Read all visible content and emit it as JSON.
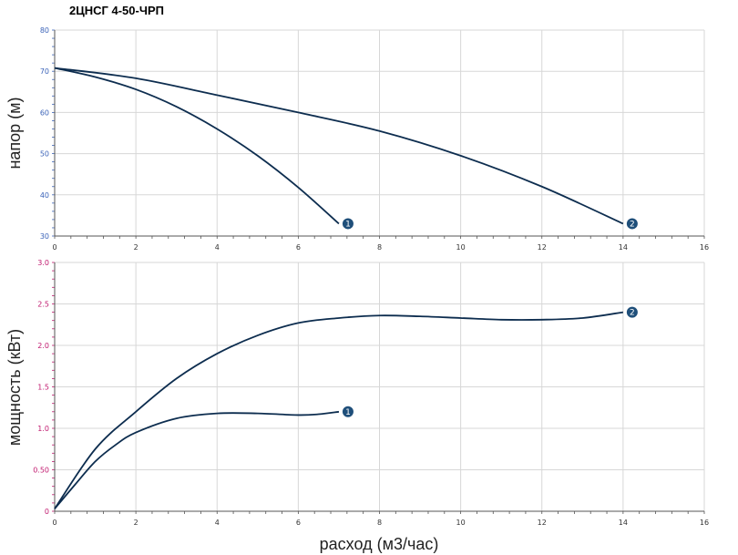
{
  "title": "2ЦНСГ 4-50-ЧРП",
  "colors": {
    "curve": "#0d2d4f",
    "marker": "#1f4f7a",
    "grid": "#d7d7d7",
    "axis": "#555555",
    "head_ticks": "#3b63b8",
    "power_ticks": "#c0186e",
    "x_ticks": "#333333"
  },
  "chart_data": [
    {
      "type": "line",
      "title": "",
      "xlabel": "",
      "ylabel": "напор (м)",
      "xlim": [
        0,
        16
      ],
      "ylim": [
        30,
        80
      ],
      "x_ticks": [
        0,
        2,
        4,
        6,
        8,
        10,
        12,
        14,
        16
      ],
      "y_ticks": [
        30,
        40,
        50,
        60,
        70,
        80
      ],
      "grid": true,
      "series": [
        {
          "name": "1",
          "points": [
            [
              0,
              70.8
            ],
            [
              1,
              68.6
            ],
            [
              2,
              65.6
            ],
            [
              3,
              61.4
            ],
            [
              4,
              56
            ],
            [
              5,
              49.5
            ],
            [
              6,
              41.8
            ],
            [
              7,
              33
            ]
          ]
        },
        {
          "name": "2",
          "points": [
            [
              0,
              70.8
            ],
            [
              2,
              68.3
            ],
            [
              4,
              64.2
            ],
            [
              6,
              60
            ],
            [
              8,
              55.5
            ],
            [
              10,
              49.5
            ],
            [
              12,
              42
            ],
            [
              14,
              33
            ]
          ]
        }
      ]
    },
    {
      "type": "line",
      "title": "",
      "xlabel": "расход (м3/час)",
      "ylabel": "мощность (кВт)",
      "xlim": [
        0,
        16
      ],
      "ylim": [
        0,
        3.0
      ],
      "x_ticks": [
        0,
        2,
        4,
        6,
        8,
        10,
        12,
        14,
        16
      ],
      "y_ticks": [
        0,
        0.5,
        1.0,
        1.5,
        2.0,
        2.5,
        3.0
      ],
      "y_tick_labels": [
        "0",
        "0.50",
        "1.0",
        "1.5",
        "2.0",
        "2.5",
        "3.0"
      ],
      "grid": true,
      "series": [
        {
          "name": "1",
          "points": [
            [
              0,
              0.03
            ],
            [
              0.5,
              0.32
            ],
            [
              1,
              0.6
            ],
            [
              1.5,
              0.8
            ],
            [
              2,
              0.95
            ],
            [
              3,
              1.12
            ],
            [
              4,
              1.18
            ],
            [
              5,
              1.18
            ],
            [
              6,
              1.16
            ],
            [
              6.5,
              1.17
            ],
            [
              7,
              1.2
            ]
          ]
        },
        {
          "name": "2",
          "points": [
            [
              0,
              0.03
            ],
            [
              1,
              0.75
            ],
            [
              2,
              1.2
            ],
            [
              3,
              1.6
            ],
            [
              4,
              1.9
            ],
            [
              5,
              2.12
            ],
            [
              6,
              2.27
            ],
            [
              7,
              2.33
            ],
            [
              8,
              2.36
            ],
            [
              9,
              2.35
            ],
            [
              10,
              2.33
            ],
            [
              11,
              2.31
            ],
            [
              12,
              2.31
            ],
            [
              13,
              2.33
            ],
            [
              14,
              2.4
            ]
          ]
        }
      ]
    }
  ]
}
